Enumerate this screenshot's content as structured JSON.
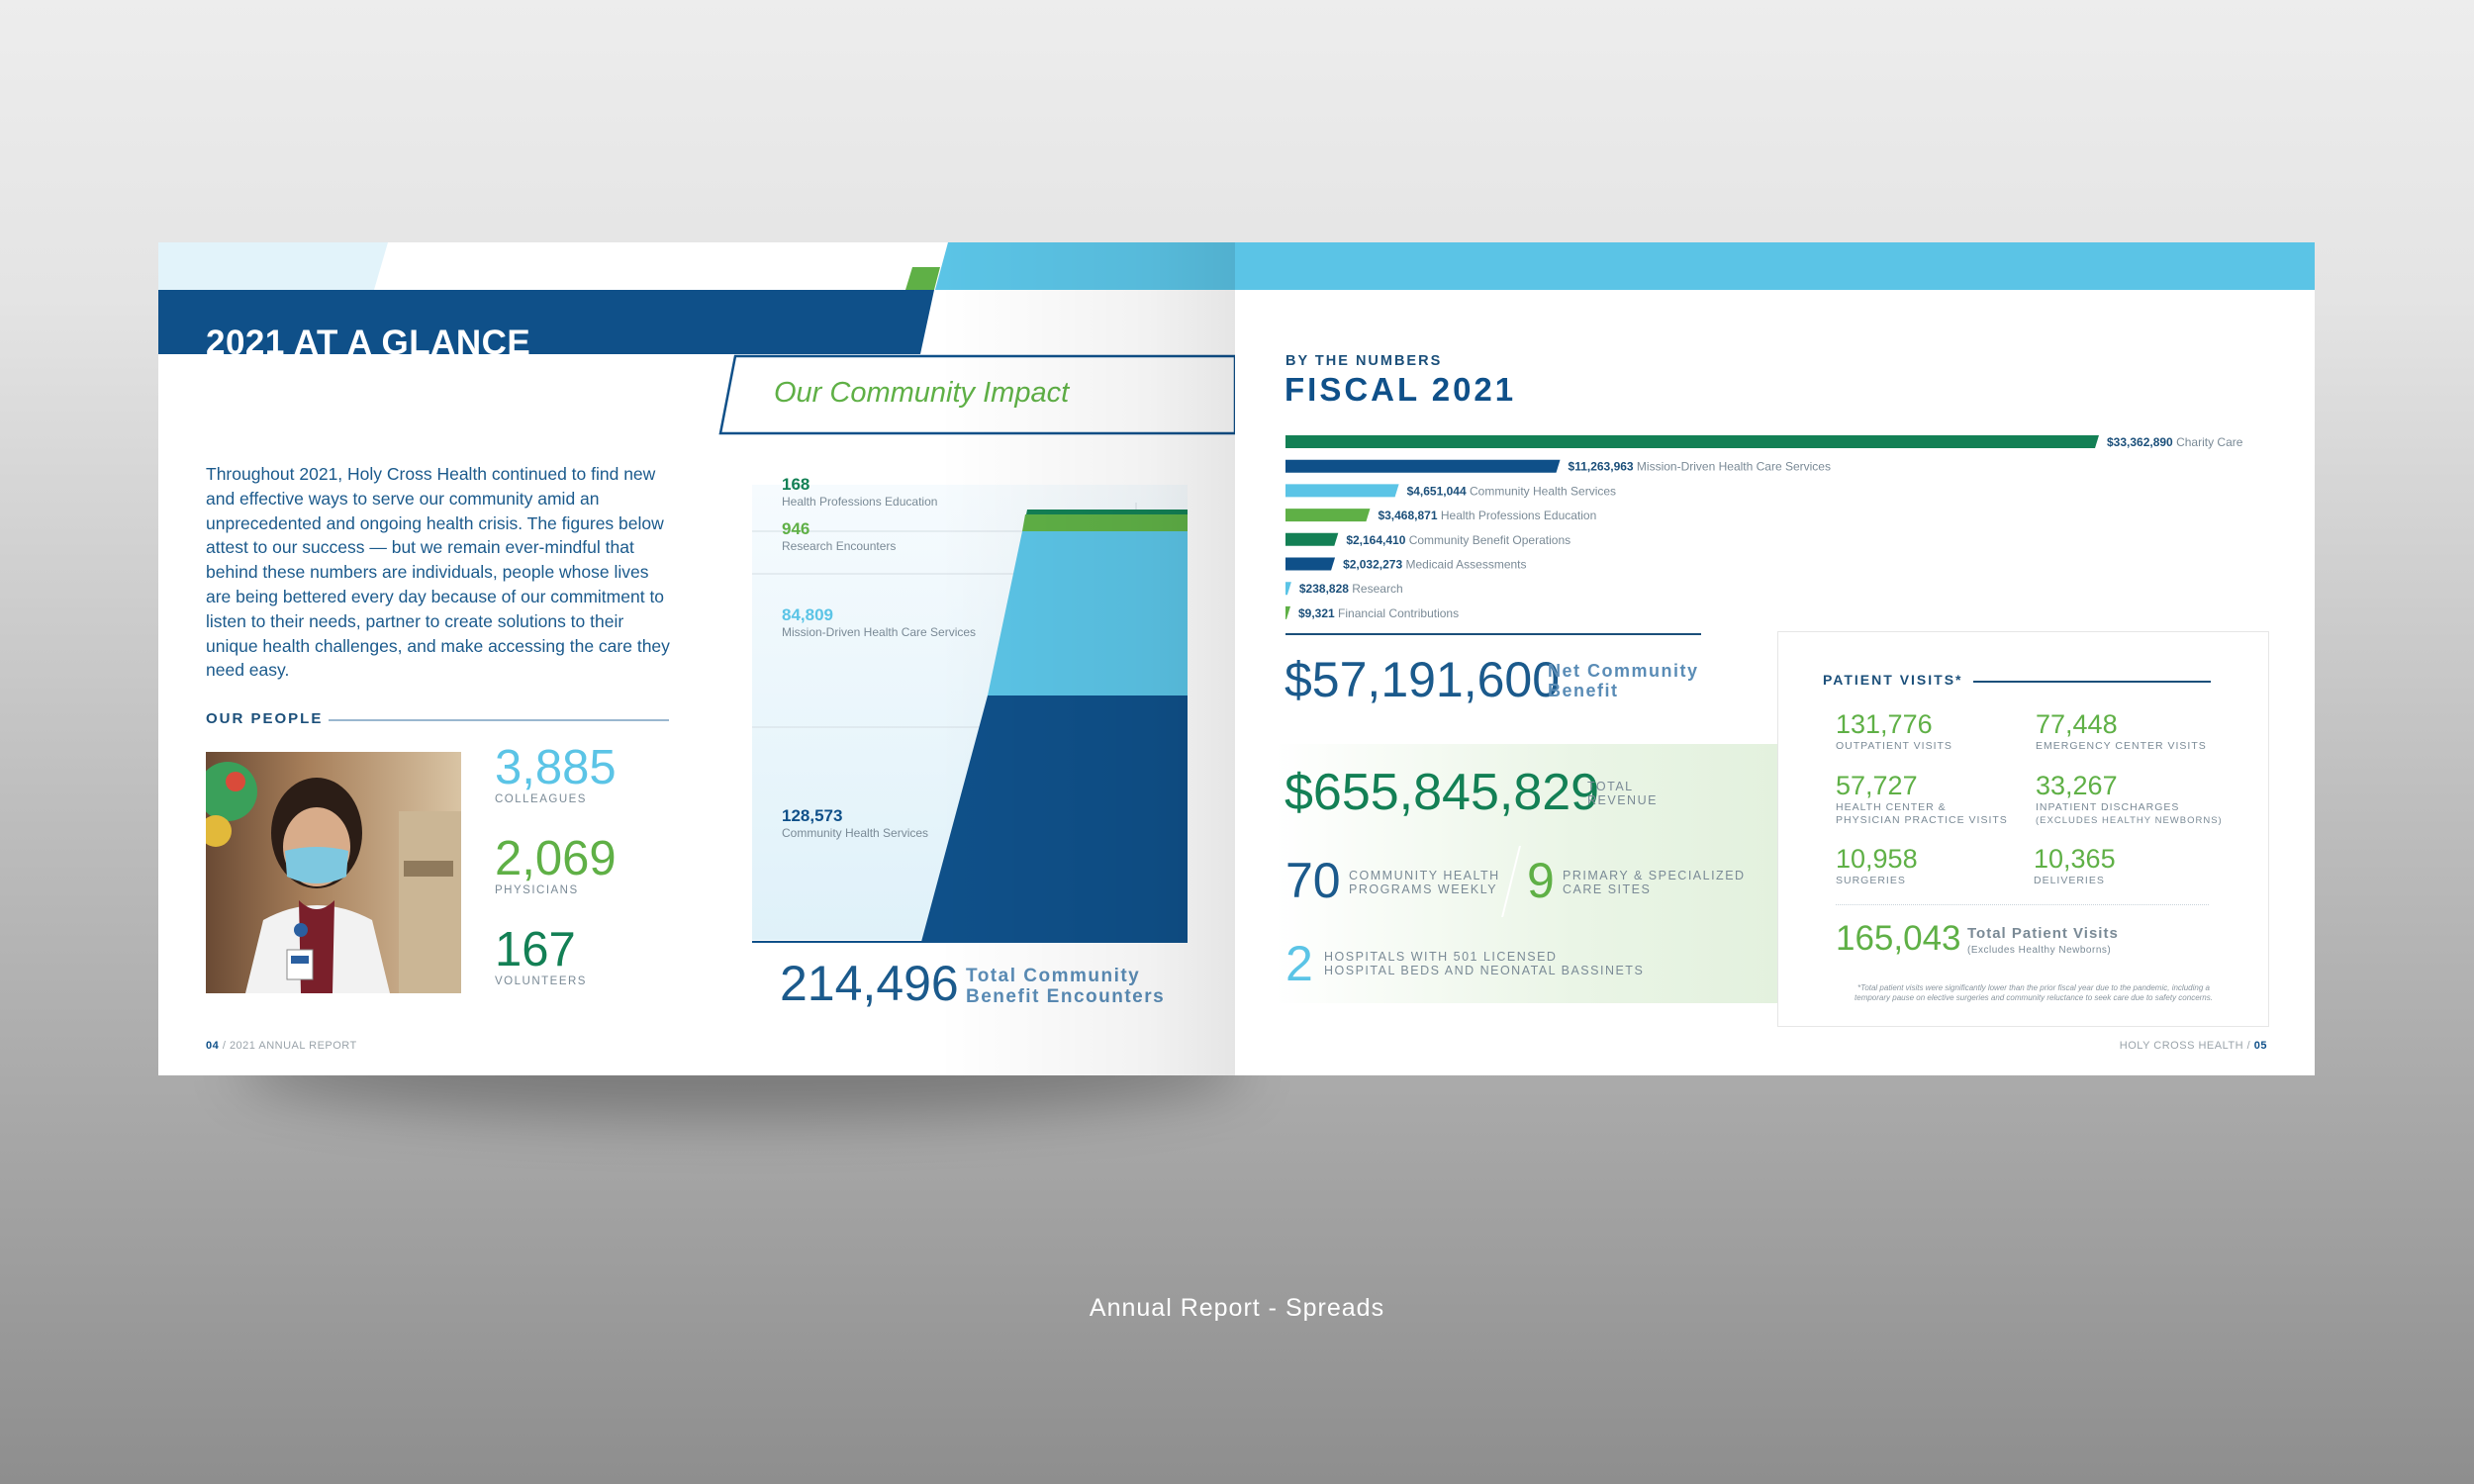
{
  "caption": "Annual Report - Spreads",
  "left_page": {
    "title": "2021 AT A GLANCE",
    "impact_heading": "Our Community Impact",
    "intro": "Throughout 2021, Holy Cross Health continued to find new and effective ways to serve our community amid an unprecedented and ongoing health crisis. The figures below attest to our success — but we remain ever-mindful that behind these numbers are individuals, people whose lives are being bettered every day because of our commitment to listen to their needs, partner to create solutions to their unique health challenges, and make accessing the care they need easy.",
    "our_people_label": "OUR PEOPLE",
    "people": [
      {
        "value": "3,885",
        "label": "COLLEAGUES",
        "color": "#5bc4e6"
      },
      {
        "value": "2,069",
        "label": "PHYSICIANS",
        "color": "#5fb046"
      },
      {
        "value": "167",
        "label": "VOLUNTEERS",
        "color": "#138055"
      }
    ],
    "encounters": [
      {
        "value": "168",
        "label": "Health Professions Education",
        "color": "#138055"
      },
      {
        "value": "946",
        "label": "Research Encounters",
        "color": "#5fb046"
      },
      {
        "value": "84,809",
        "label": "Mission-Driven Health Care Services",
        "color": "#5bc4e6"
      },
      {
        "value": "128,573",
        "label": "Community Health Services",
        "color": "#0f5089"
      }
    ],
    "total_value": "214,496",
    "total_label_line1": "Total Community",
    "total_label_line2": "Benefit Encounters",
    "footer_page": "04",
    "footer_text": "2021 ANNUAL REPORT"
  },
  "right_page": {
    "kicker": "BY THE NUMBERS",
    "title": "FISCAL 2021",
    "bars": [
      {
        "value": "$33,362,890",
        "label": "Charity Care",
        "amount": 33362890,
        "color": "#138055"
      },
      {
        "value": "$11,263,963",
        "label": "Mission-Driven Health Care Services",
        "amount": 11263963,
        "color": "#0f5089"
      },
      {
        "value": "$4,651,044",
        "label": "Community Health Services",
        "amount": 4651044,
        "color": "#5bc4e6"
      },
      {
        "value": "$3,468,871",
        "label": "Health Professions Education",
        "amount": 3468871,
        "color": "#5fb046"
      },
      {
        "value": "$2,164,410",
        "label": "Community Benefit Operations",
        "amount": 2164410,
        "color": "#138055"
      },
      {
        "value": "$2,032,273",
        "label": "Medicaid Assessments",
        "amount": 2032273,
        "color": "#0f5089"
      },
      {
        "value": "$238,828",
        "label": "Research",
        "amount": 238828,
        "color": "#5bc4e6"
      },
      {
        "value": "$9,321",
        "label": "Financial Contributions",
        "amount": 9321,
        "color": "#5fb046"
      }
    ],
    "net_value": "$57,191,600",
    "net_label_line1": "Net Community",
    "net_label_line2": "Benefit",
    "revenue_value": "$655,845,829",
    "revenue_label_line1": "TOTAL",
    "revenue_label_line2": "REVENUE",
    "programs_value": "70",
    "programs_label_line1": "COMMUNITY HEALTH",
    "programs_label_line2": "PROGRAMS WEEKLY",
    "sites_value": "9",
    "sites_label_line1": "PRIMARY & SPECIALIZED",
    "sites_label_line2": "CARE SITES",
    "hospitals_value": "2",
    "hospitals_label_line1": "HOSPITALS WITH 501 LICENSED",
    "hospitals_label_line2": "HOSPITAL BEDS AND NEONATAL BASSINETS",
    "patient_visits": {
      "heading": "PATIENT VISITS*",
      "items": [
        {
          "value": "131,776",
          "label1": "OUTPATIENT VISITS",
          "label2": ""
        },
        {
          "value": "77,448",
          "label1": "EMERGENCY CENTER VISITS",
          "label2": ""
        },
        {
          "value": "57,727",
          "label1": "HEALTH CENTER &",
          "label2": "PHYSICIAN PRACTICE VISITS"
        },
        {
          "value": "33,267",
          "label1": "INPATIENT DISCHARGES",
          "label2": "(EXCLUDES HEALTHY NEWBORNS)"
        },
        {
          "value": "10,958",
          "label1": "SURGERIES",
          "label2": ""
        },
        {
          "value": "10,365",
          "label1": "DELIVERIES",
          "label2": ""
        }
      ],
      "total_value": "165,043",
      "total_label": "Total Patient Visits",
      "total_sub": "(Excludes Healthy Newborns)",
      "footnote_line1": "*Total patient visits were significantly lower than the prior fiscal year due to the pandemic, including a",
      "footnote_line2": "temporary pause on elective surgeries and community reluctance to seek care due to safety concerns."
    },
    "footer_text": "HOLY CROSS HEALTH",
    "footer_page": "05"
  },
  "colors": {
    "navy": "#0f5089",
    "sky": "#5bc4e6",
    "green": "#5fb046",
    "dark_green": "#138055",
    "pale_sky": "#e2f3fa"
  }
}
